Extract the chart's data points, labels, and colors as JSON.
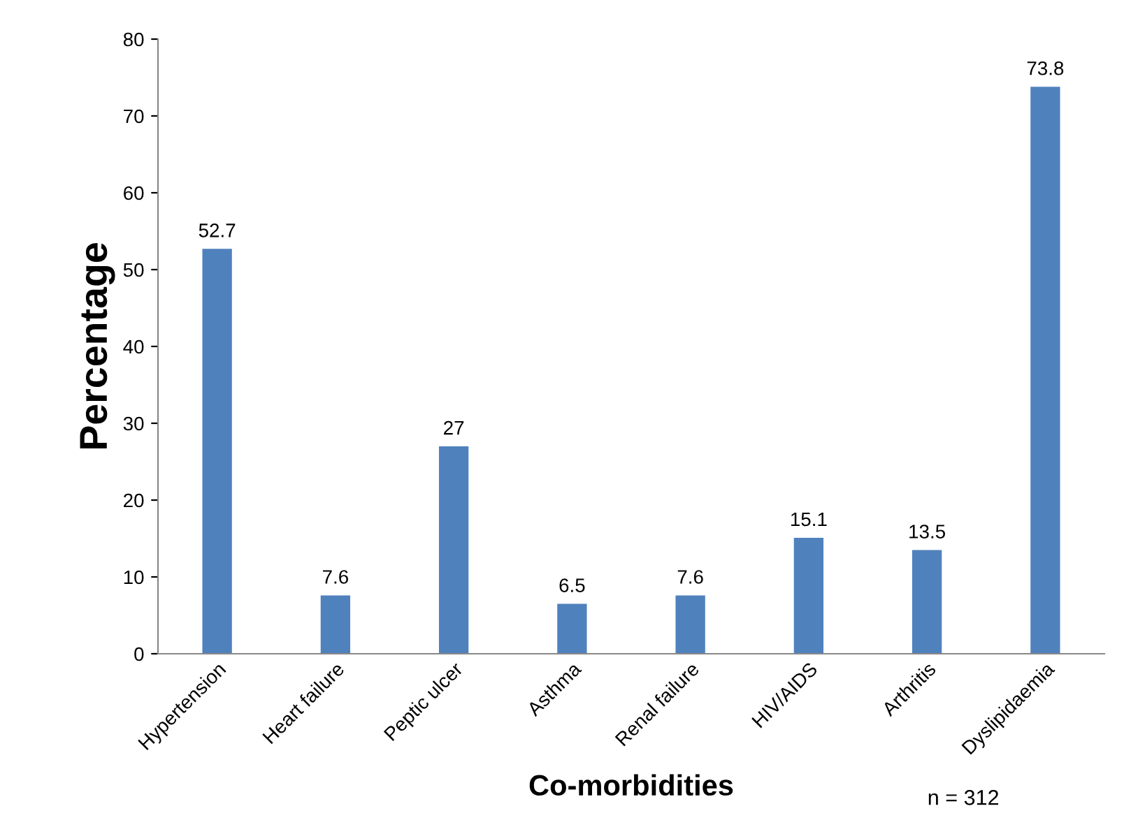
{
  "chart_data": {
    "type": "bar",
    "xlabel": "Co-morbidities",
    "ylabel": "Percentage",
    "categories": [
      "Hypertension",
      "Heart failure",
      "Peptic ulcer",
      "Asthma",
      "Renal failure",
      "HIV/AIDS",
      "Arthritis",
      "Dyslipidaemia"
    ],
    "values": [
      52.7,
      7.6,
      27,
      6.5,
      7.6,
      15.1,
      13.5,
      73.8
    ],
    "color": "#4f81bd",
    "ylim": [
      0,
      80
    ],
    "yticks": [
      0,
      10,
      20,
      30,
      40,
      50,
      60,
      70,
      80
    ],
    "grid": false,
    "data_labels": true,
    "annotations": [
      "n = 312"
    ]
  }
}
